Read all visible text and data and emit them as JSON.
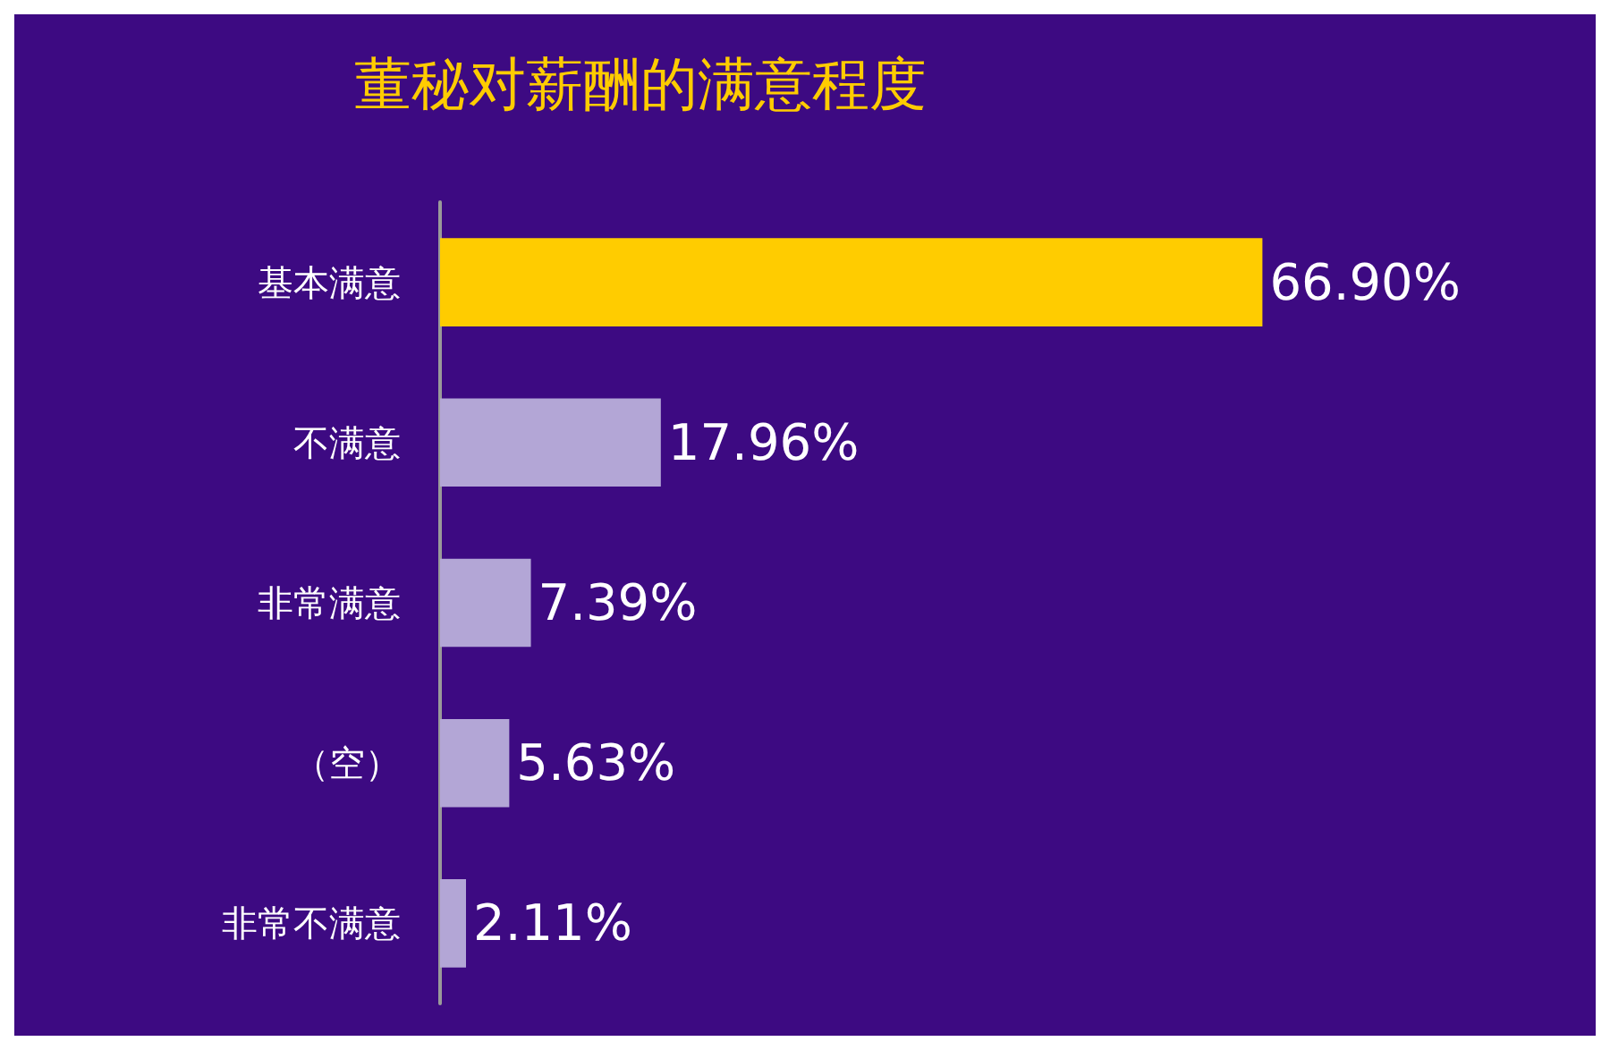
{
  "chart_data": {
    "type": "bar",
    "title": "董秘对薪酬的满意程度",
    "orientation": "horizontal",
    "categories": [
      "基本满意",
      "不满意",
      "非常满意",
      "（空）",
      "非常不满意"
    ],
    "values": [
      66.9,
      17.96,
      7.39,
      5.63,
      2.11
    ],
    "value_labels": [
      "66.90%",
      "17.96%",
      "7.39%",
      "5.63%",
      "2.11%"
    ],
    "colors": [
      "#ffcc00",
      "#b3a6d6",
      "#b3a6d6",
      "#b3a6d6",
      "#b3a6d6"
    ],
    "grid": false
  }
}
